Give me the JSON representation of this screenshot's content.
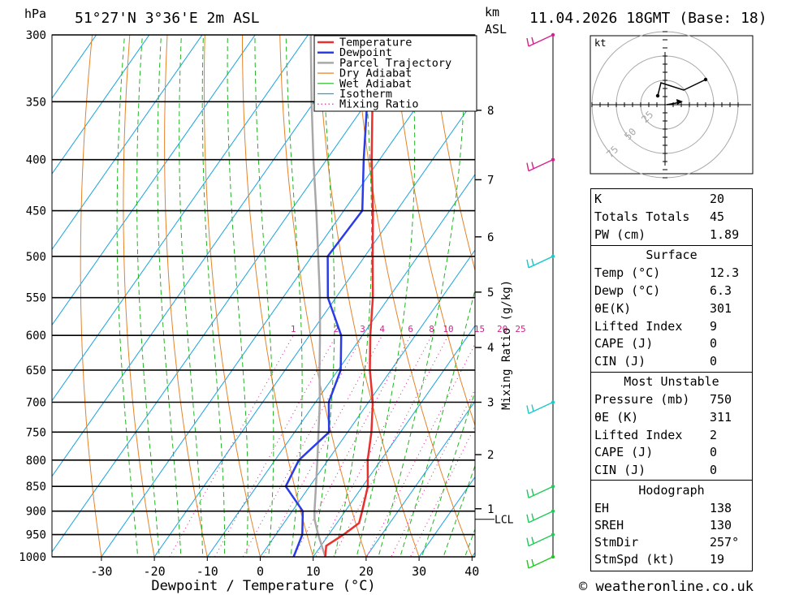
{
  "header": {
    "location": "51°27'N 3°36'E 2m ASL",
    "datetime": "11.04.2026 18GMT (Base: 18)",
    "y_unit": "hPa",
    "km_unit": "km",
    "asl_unit": "ASL"
  },
  "chart_data": {
    "type": "skew-t",
    "title": "51°27'N 3°36'E 2m ASL",
    "xlabel": "Dewpoint / Temperature (°C)",
    "ylabel": "hPa",
    "xlim": [
      -40,
      40
    ],
    "ylim": [
      1000,
      300
    ],
    "pressure_ticks": [
      300,
      350,
      400,
      450,
      500,
      550,
      600,
      650,
      700,
      750,
      800,
      850,
      900,
      950,
      1000
    ],
    "temp_ticks": [
      -30,
      -20,
      -10,
      0,
      10,
      20,
      30,
      40
    ],
    "km_ticks": [
      {
        "label": "8",
        "p": 357
      },
      {
        "label": "7",
        "p": 419
      },
      {
        "label": "6",
        "p": 478
      },
      {
        "label": "5",
        "p": 543
      },
      {
        "label": "4",
        "p": 617
      },
      {
        "label": "3",
        "p": 700
      },
      {
        "label": "2",
        "p": 790
      },
      {
        "label": "1",
        "p": 895
      }
    ],
    "lcl": {
      "label": "LCL",
      "p": 917
    },
    "mixing_ratio_axis_label": "Mixing Ratio (g/kg)",
    "mixing_ratio_values": [
      1,
      2,
      3,
      4,
      6,
      8,
      10,
      15,
      20,
      25
    ],
    "mixing_ratio_label_pressure": 600,
    "legend": {
      "placement": "top",
      "entries": [
        {
          "label": "Temperature",
          "color": "#e8302e",
          "style": "thick"
        },
        {
          "label": "Dewpoint",
          "color": "#2a3ce8",
          "style": "thick"
        },
        {
          "label": "Parcel Trajectory",
          "color": "#a8a8a8",
          "style": "thick"
        },
        {
          "label": "Dry Adiabat",
          "color": "#e5832a",
          "style": "solid"
        },
        {
          "label": "Wet Adiabat",
          "color": "#22b422",
          "style": "solid"
        },
        {
          "label": "Isotherm",
          "color": "#1aa3e0",
          "style": "solid"
        },
        {
          "label": "Mixing Ratio",
          "color": "#d6208c",
          "style": "dotted"
        }
      ]
    },
    "series": [
      {
        "name": "Temperature",
        "color": "#e8302e",
        "points": [
          {
            "p": 1000,
            "t": 12.3
          },
          {
            "p": 975,
            "t": 11.0
          },
          {
            "p": 950,
            "t": 12.8
          },
          {
            "p": 925,
            "t": 14.2
          },
          {
            "p": 900,
            "t": 13.2
          },
          {
            "p": 850,
            "t": 11.0
          },
          {
            "p": 800,
            "t": 7.5
          },
          {
            "p": 750,
            "t": 4.5
          },
          {
            "p": 700,
            "t": 0.8
          },
          {
            "p": 650,
            "t": -4.0
          },
          {
            "p": 600,
            "t": -8.5
          },
          {
            "p": 550,
            "t": -13.0
          },
          {
            "p": 500,
            "t": -18.5
          },
          {
            "p": 450,
            "t": -24.5
          },
          {
            "p": 400,
            "t": -31.5
          },
          {
            "p": 350,
            "t": -39.0
          },
          {
            "p": 300,
            "t": -47.0
          }
        ]
      },
      {
        "name": "Dewpoint",
        "color": "#2a3ce8",
        "points": [
          {
            "p": 1000,
            "t": 6.3
          },
          {
            "p": 950,
            "t": 5.0
          },
          {
            "p": 900,
            "t": 2.0
          },
          {
            "p": 850,
            "t": -4.5
          },
          {
            "p": 800,
            "t": -5.5
          },
          {
            "p": 750,
            "t": -3.5
          },
          {
            "p": 700,
            "t": -7.5
          },
          {
            "p": 650,
            "t": -9.5
          },
          {
            "p": 600,
            "t": -14.0
          },
          {
            "p": 550,
            "t": -21.5
          },
          {
            "p": 500,
            "t": -27.0
          },
          {
            "p": 450,
            "t": -26.5
          },
          {
            "p": 400,
            "t": -33.0
          },
          {
            "p": 350,
            "t": -40.0
          },
          {
            "p": 300,
            "t": -51.0
          }
        ]
      },
      {
        "name": "Parcel Trajectory",
        "color": "#a8a8a8",
        "points": [
          {
            "p": 1000,
            "t": 12.3
          },
          {
            "p": 950,
            "t": 8.0
          },
          {
            "p": 917,
            "t": 5.3
          },
          {
            "p": 900,
            "t": 4.2
          },
          {
            "p": 850,
            "t": 1.2
          },
          {
            "p": 800,
            "t": -2.0
          },
          {
            "p": 750,
            "t": -5.5
          },
          {
            "p": 700,
            "t": -9.2
          },
          {
            "p": 650,
            "t": -13.5
          },
          {
            "p": 600,
            "t": -18.0
          },
          {
            "p": 550,
            "t": -23.0
          },
          {
            "p": 500,
            "t": -28.8
          },
          {
            "p": 450,
            "t": -35.2
          },
          {
            "p": 400,
            "t": -42.5
          },
          {
            "p": 350,
            "t": -50.5
          },
          {
            "p": 300,
            "t": -59.5
          }
        ]
      }
    ],
    "wind_barbs": [
      {
        "p": 300,
        "color": "#d6208c"
      },
      {
        "p": 400,
        "color": "#d6208c"
      },
      {
        "p": 500,
        "color": "#1fc8c8"
      },
      {
        "p": 700,
        "color": "#1fc8c8"
      },
      {
        "p": 850,
        "color": "#22c85a"
      },
      {
        "p": 900,
        "color": "#22c85a"
      },
      {
        "p": 950,
        "color": "#22c85a"
      },
      {
        "p": 1000,
        "color": "#22c822"
      }
    ]
  },
  "hodograph": {
    "unit_label": "kt",
    "ring_labels": [
      "25",
      "50",
      "75"
    ]
  },
  "indices": {
    "rows": [
      {
        "label": "K",
        "value": "20"
      },
      {
        "label": "Totals Totals",
        "value": "45"
      },
      {
        "label": "PW (cm)",
        "value": "1.89"
      }
    ]
  },
  "surface": {
    "title": "Surface",
    "rows": [
      {
        "label": "Temp (°C)",
        "value": "12.3"
      },
      {
        "label": "Dewp (°C)",
        "value": "6.3"
      },
      {
        "label": "θE(K)",
        "value": "301"
      },
      {
        "label": "Lifted Index",
        "value": "9"
      },
      {
        "label": "CAPE (J)",
        "value": "0"
      },
      {
        "label": "CIN (J)",
        "value": "0"
      }
    ]
  },
  "most_unstable": {
    "title": "Most Unstable",
    "rows": [
      {
        "label": "Pressure (mb)",
        "value": "750"
      },
      {
        "label": "θE (K)",
        "value": "311"
      },
      {
        "label": "Lifted Index",
        "value": "2"
      },
      {
        "label": "CAPE (J)",
        "value": "0"
      },
      {
        "label": "CIN (J)",
        "value": "0"
      }
    ]
  },
  "hodograph_stats": {
    "title": "Hodograph",
    "rows": [
      {
        "label": "EH",
        "value": "138"
      },
      {
        "label": "SREH",
        "value": "130"
      },
      {
        "label": "StmDir",
        "value": "257°"
      },
      {
        "label": "StmSpd (kt)",
        "value": "19"
      }
    ]
  },
  "footer": {
    "copyright": "© weatheronline.co.uk"
  }
}
